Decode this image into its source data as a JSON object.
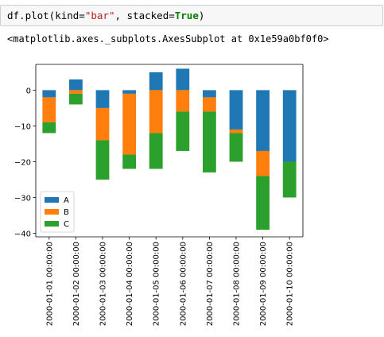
{
  "code_cell": {
    "prefix": "df.plot(kind=",
    "kind_value": "\"bar\"",
    "middle": ", stacked=",
    "stacked_value": "True",
    "suffix": ")"
  },
  "output": {
    "repr": "<matplotlib.axes._subplots.AxesSubplot at 0x1e59a0bf0f0>"
  },
  "chart_data": {
    "type": "bar",
    "stacked": true,
    "categories": [
      "2000-01-01 00:00:00",
      "2000-01-02 00:00:00",
      "2000-01-03 00:00:00",
      "2000-01-04 00:00:00",
      "2000-01-05 00:00:00",
      "2000-01-06 00:00:00",
      "2000-01-07 00:00:00",
      "2000-01-08 00:00:00",
      "2000-01-09 00:00:00",
      "2000-01-10 00:00:00"
    ],
    "series": [
      {
        "name": "A",
        "color": "#1f77b4",
        "values": [
          -2,
          3,
          -5,
          -1,
          5,
          6,
          -2,
          -11,
          -17,
          -20
        ]
      },
      {
        "name": "B",
        "color": "#ff7f0e",
        "values": [
          -7,
          -1,
          -9,
          -17,
          -12,
          -6,
          -4,
          -1,
          -7,
          0
        ]
      },
      {
        "name": "C",
        "color": "#2ca02c",
        "values": [
          -3,
          -3,
          -11,
          -4,
          -10,
          -11,
          -17,
          -8,
          -15,
          -10
        ]
      }
    ],
    "y_ticks": [
      0,
      -10,
      -20,
      -30,
      -40
    ],
    "y_tick_labels": [
      "0",
      "−10",
      "−20",
      "−30",
      "−40"
    ],
    "ylim": [
      -41,
      7.2
    ],
    "legend_placement": "lower-left",
    "grid": false,
    "title": "",
    "xlabel": "",
    "ylabel": ""
  }
}
